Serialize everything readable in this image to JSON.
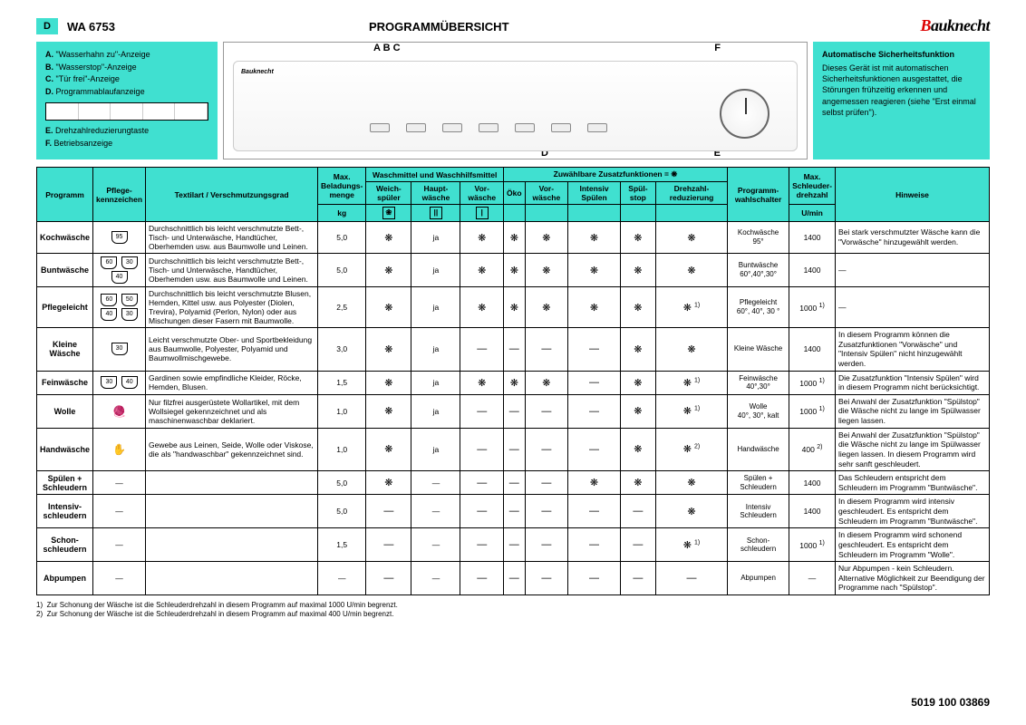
{
  "header": {
    "badge": "D",
    "model": "WA 6753",
    "title": "PROGRAMMÜBERSICHT",
    "brand": "Bauknecht"
  },
  "legend": {
    "a": "\"Wasserhahn zu\"-Anzeige",
    "b": "\"Wasserstop\"-Anzeige",
    "c": "\"Tür frei\"-Anzeige",
    "d": "Programmablaufanzeige",
    "e": "Drehzahlreduzierungtaste",
    "f": "Betriebsanzeige"
  },
  "panel_labels": {
    "abc": "A B C",
    "d": "D",
    "e": "E",
    "f": "F"
  },
  "safety": {
    "title": "Automatische Sicherheitsfunktion",
    "text": "Dieses Gerät ist mit automatischen Sicherheitsfunktionen ausgestattet, die Störungen frühzeitig erkennen und angemessen reagieren (siehe \"Erst einmal selbst prüfen\")."
  },
  "columns": {
    "programm": "Programm",
    "pflege": "Pflege-kennzeichen",
    "textil": "Textilart / Verschmutzungsgrad",
    "max_bel": "Max. Beladungs-menge",
    "kg": "kg",
    "wasch_group": "Waschmittel und Waschhilfsmittel",
    "weich": "Weich-spüler",
    "haupt": "Haupt-wäsche",
    "vor": "Vor-wäsche",
    "zusatz_group": "Zuwählbare Zusatzfunktionen = ❋",
    "oeko": "Öko",
    "vorw": "Vor-wäsche",
    "intensiv": "Intensiv Spülen",
    "spulstop": "Spül-stop",
    "drehzahl": "Drehzahl-reduzierung",
    "wahlsch": "Programm-wahlschalter",
    "max_schl": "Max. Schleuder-drehzahl",
    "umin": "U/min",
    "hinweise": "Hinweise"
  },
  "rows": [
    {
      "name": "Kochwäsche",
      "care": [
        "95"
      ],
      "textil": "Durchschnittlich bis leicht verschmutzte Bett-, Tisch- und Unterwäsche, Handtücher, Oberhemden usw. aus Baumwolle und Leinen.",
      "bel": "5,0",
      "weich": "❋",
      "haupt": "ja",
      "vor": "❋",
      "oeko": "❋",
      "vorw": "❋",
      "int": "❋",
      "stop": "❋",
      "dreh": "❋",
      "wahl": "Kochwäsche\n95°",
      "rpm": "1400",
      "hint": "Bei stark verschmutzter Wäsche kann die \"Vorwäsche\" hinzugewählt werden."
    },
    {
      "name": "Buntwäsche",
      "care": [
        "60",
        "30",
        "40"
      ],
      "textil": "Durchschnittlich bis leicht verschmutzte Bett-, Tisch- und Unterwäsche, Handtücher, Oberhemden usw. aus Baumwolle und Leinen.",
      "bel": "5,0",
      "weich": "❋",
      "haupt": "ja",
      "vor": "❋",
      "oeko": "❋",
      "vorw": "❋",
      "int": "❋",
      "stop": "❋",
      "dreh": "❋",
      "wahl": "Buntwäsche\n60°,40°,30°",
      "rpm": "1400",
      "hint": "—"
    },
    {
      "name": "Pflegeleicht",
      "care": [
        "60",
        "50",
        "40",
        "30"
      ],
      "textil": "Durchschnittlich bis leicht verschmutzte Blusen, Hemden, Kittel usw. aus Polyester (Diolen, Trevira), Polyamid (Perlon, Nylon) oder aus Mischungen dieser Fasern mit Baumwolle.",
      "bel": "2,5",
      "weich": "❋",
      "haupt": "ja",
      "vor": "❋",
      "oeko": "❋",
      "vorw": "❋",
      "int": "❋",
      "stop": "❋",
      "dreh": "❋ 1)",
      "wahl": "Pflegeleicht\n60°, 40°, 30 °",
      "rpm": "1000 1)",
      "hint": "—"
    },
    {
      "name": "Kleine Wäsche",
      "care": [
        "30"
      ],
      "textil": "Leicht verschmutzte Ober- und Sportbekleidung aus Baumwolle, Polyester, Polyamid und Baumwollmischgewebe.",
      "bel": "3,0",
      "weich": "❋",
      "haupt": "ja",
      "vor": "—",
      "oeko": "—",
      "vorw": "—",
      "int": "—",
      "stop": "❋",
      "dreh": "❋",
      "wahl": "Kleine Wäsche",
      "rpm": "1400",
      "hint": "In diesem Programm können die Zusatzfunktionen \"Vorwäsche\" und \"Intensiv Spülen\" nicht hinzugewählt werden."
    },
    {
      "name": "Feinwäsche",
      "care": [
        "30",
        "40"
      ],
      "textil": "Gardinen sowie empfindliche Kleider, Röcke, Hemden, Blusen.",
      "bel": "1,5",
      "weich": "❋",
      "haupt": "ja",
      "vor": "❋",
      "oeko": "❋",
      "vorw": "❋",
      "int": "—",
      "stop": "❋",
      "dreh": "❋ 1)",
      "wahl": "Feinwäsche\n40°,30°",
      "rpm": "1000 1)",
      "hint": "Die Zusatzfunktion \"Intensiv Spülen\" wird in diesem Programm nicht berücksichtigt."
    },
    {
      "name": "Wolle",
      "care": [
        "wool"
      ],
      "textil": "Nur filzfrei ausgerüstete Wollartikel, mit dem Wollsiegel gekennzeichnet und als maschinenwaschbar deklariert.",
      "bel": "1,0",
      "weich": "❋",
      "haupt": "ja",
      "vor": "—",
      "oeko": "—",
      "vorw": "—",
      "int": "—",
      "stop": "❋",
      "dreh": "❋ 1)",
      "wahl": "Wolle\n40°, 30°, kalt",
      "rpm": "1000 1)",
      "hint": "Bei Anwahl der Zusatzfunktion \"Spülstop\" die Wäsche nicht zu lange im Spülwasser liegen lassen."
    },
    {
      "name": "Handwäsche",
      "care": [
        "hand"
      ],
      "textil": "Gewebe aus Leinen, Seide, Wolle oder Viskose, die als \"handwaschbar\" gekennzeichnet sind.",
      "bel": "1,0",
      "weich": "❋",
      "haupt": "ja",
      "vor": "—",
      "oeko": "—",
      "vorw": "—",
      "int": "—",
      "stop": "❋",
      "dreh": "❋ 2)",
      "wahl": "Handwäsche",
      "rpm": "400 2)",
      "hint": "Bei Anwahl der Zusatzfunktion \"Spülstop\" die Wäsche nicht zu lange im Spülwasser liegen lassen. In diesem Programm wird sehr sanft geschleudert."
    },
    {
      "name": "Spülen + Schleudern",
      "care": [
        "—"
      ],
      "textil": "",
      "bel": "5,0",
      "weich": "❋",
      "haupt": "—",
      "vor": "—",
      "oeko": "—",
      "vorw": "—",
      "int": "❋",
      "stop": "❋",
      "dreh": "❋",
      "wahl": "Spülen + Schleudern",
      "rpm": "1400",
      "hint": "Das Schleudern entspricht dem Schleudern im Programm \"Buntwäsche\"."
    },
    {
      "name": "Intensiv-schleudern",
      "care": [
        "—"
      ],
      "textil": "",
      "bel": "5,0",
      "weich": "—",
      "haupt": "—",
      "vor": "—",
      "oeko": "—",
      "vorw": "—",
      "int": "—",
      "stop": "—",
      "dreh": "❋",
      "wahl": "Intensiv Schleudern",
      "rpm": "1400",
      "hint": "In diesem Programm wird intensiv geschleudert. Es entspricht dem Schleudern im Programm \"Buntwäsche\"."
    },
    {
      "name": "Schon-schleudern",
      "care": [
        "—"
      ],
      "textil": "",
      "bel": "1,5",
      "weich": "—",
      "haupt": "—",
      "vor": "—",
      "oeko": "—",
      "vorw": "—",
      "int": "—",
      "stop": "—",
      "dreh": "❋ 1)",
      "wahl": "Schon-schleudern",
      "rpm": "1000 1)",
      "hint": "In diesem Programm wird schonend geschleudert. Es entspricht dem Schleudern im Programm \"Wolle\"."
    },
    {
      "name": "Abpumpen",
      "care": [
        "—"
      ],
      "textil": "",
      "bel": "—",
      "weich": "—",
      "haupt": "—",
      "vor": "—",
      "oeko": "—",
      "vorw": "—",
      "int": "—",
      "stop": "—",
      "dreh": "—",
      "wahl": "Abpumpen",
      "rpm": "—",
      "hint": "Nur Abpumpen - kein Schleudern. Alternative Möglichkeit zur Beendigung der Programme nach \"Spülstop\"."
    }
  ],
  "footnotes": {
    "f1": "Zur Schonung der Wäsche ist die Schleuderdrehzahl in diesem Programm auf maximal 1000 U/min begrenzt.",
    "f2": "Zur Schonung der Wäsche ist die Schleuderdrehzahl in diesem Programm auf maximal 400 U/min begrenzt."
  },
  "docnum": "5019 100 03869"
}
